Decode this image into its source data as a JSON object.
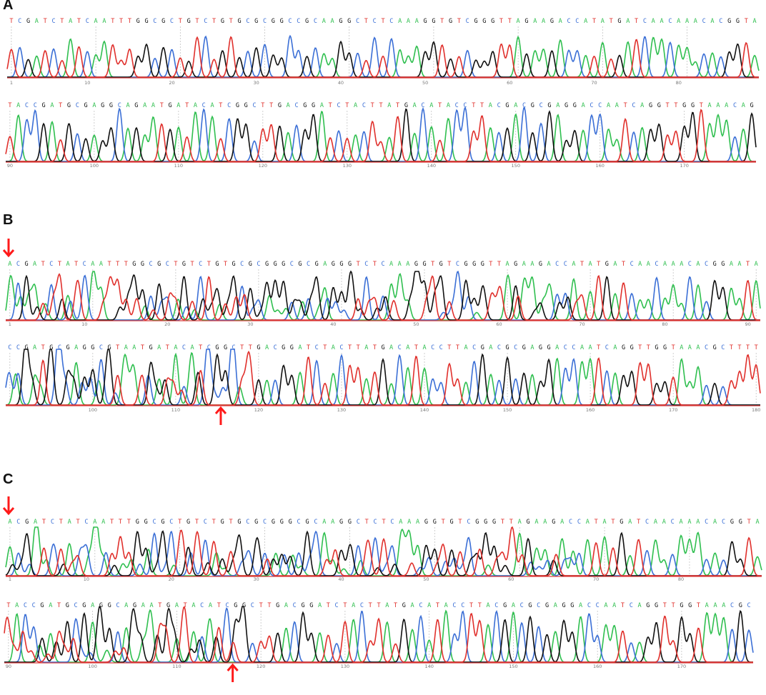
{
  "colors": {
    "A": "#2fbf4f",
    "C": "#3b6fd6",
    "G": "#111111",
    "T": "#e0302c",
    "arrow": "#ff1a1a",
    "ruler": "#777777"
  },
  "chart_data": {
    "type": "line",
    "panels": [
      {
        "label": "A",
        "rows": [
          {
            "sequence": "TCGATCTATCAATTTGGCGCTGTCTGTGCGCGGCCGCAAGGCTCTCAAAGGTGTCGGGTTAGAAGACCATATGATCAACAAACACGGTA",
            "ticks": [
              "1",
              "10",
              "20",
              "30",
              "40",
              "50",
              "60",
              "70",
              "80"
            ]
          },
          {
            "sequence": "TACCGATGCGAGGCAGAATGATACATCGGCTTGACGGATCTACTTATGACATACCTTACGACGCGAGGACCAATCAGGTTGGTAAACAG",
            "ticks": [
              "90",
              "100",
              "110",
              "120",
              "130",
              "140",
              "150",
              "160",
              "170"
            ]
          }
        ],
        "arrows": []
      },
      {
        "label": "B",
        "rows": [
          {
            "sequence": "ACGATCTATCAATTTGGCGCTGTCTGTGCGCGGGCGCGAGGGTCTCAAAGGTGTCGGGTTAGAAGACCATATGATCAACAAACACGGAATA",
            "ticks": [
              "1",
              "10",
              "20",
              "30",
              "40",
              "50",
              "60",
              "70",
              "80",
              "90"
            ]
          },
          {
            "sequence": "CCGATGCGAGGCGTAATGATACATCGGCTTGACGGATCTACTTATGACATACCTTACGACGCGAGGACCAATCAGGTTGGTAAACGCTTTT",
            "ticks": [
              "",
              "100",
              "110",
              "120",
              "130",
              "140",
              "150",
              "160",
              "170",
              "180"
            ]
          }
        ],
        "arrows": [
          "start",
          "mutation"
        ]
      },
      {
        "label": "C",
        "rows": [
          {
            "sequence": "ACGATCTATCAATTTGGCGCTGTCTGTGCGCGGGCGCAAGGCTCTCAAAGGTGTCGGGTTAGAAGACCATATGATCAACAAACACGGTA",
            "ticks": [
              "1",
              "10",
              "20",
              "30",
              "40",
              "50",
              "60",
              "70",
              "80"
            ]
          },
          {
            "sequence": "TACCGATGCGAGGCAGAATGATACATCGGCTTGACGGATCTACTTATGACATACCTTACGACGCGAGGACCAATCAGGTTGGTAAACGC",
            "ticks": [
              "90",
              "100",
              "110",
              "120",
              "130",
              "140",
              "150",
              "160",
              "170"
            ]
          }
        ],
        "arrows": [
          "start",
          "mutation"
        ]
      }
    ]
  }
}
